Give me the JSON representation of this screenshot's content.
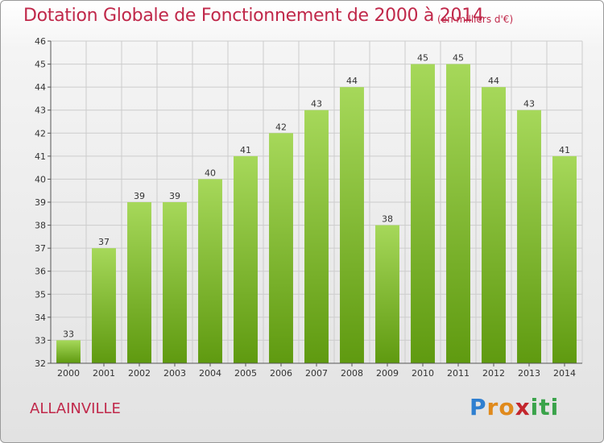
{
  "header": {
    "title": "Dotation Globale de Fonctionnement de 2000 à 2014",
    "units": "(en milliers d'€)"
  },
  "footer": {
    "commune": "ALLAINVILLE",
    "logo_letters": [
      "P",
      "r",
      "o",
      "x",
      "i",
      "t",
      "i"
    ],
    "logo_colors": [
      "#2f7fd0",
      "#e08a1c",
      "#e08a1c",
      "#c3262d",
      "#3aa34a",
      "#3aa34a",
      "#3aa34a"
    ]
  },
  "colors": {
    "title": "#c0284a",
    "bar_top": "#a6d85a",
    "bar_bottom": "#5f9a10",
    "grid": "#cccccc",
    "axis": "#555555"
  },
  "chart_data": {
    "type": "bar",
    "categories": [
      "2000",
      "2001",
      "2002",
      "2003",
      "2004",
      "2005",
      "2006",
      "2007",
      "2008",
      "2009",
      "2010",
      "2011",
      "2012",
      "2013",
      "2014"
    ],
    "values": [
      33,
      37,
      39,
      39,
      40,
      41,
      42,
      43,
      44,
      38,
      45,
      45,
      44,
      43,
      41
    ],
    "ylim": [
      32,
      46
    ],
    "yticks": [
      32,
      33,
      34,
      35,
      36,
      37,
      38,
      39,
      40,
      41,
      42,
      43,
      44,
      45,
      46
    ],
    "grid": true,
    "data_labels": true
  }
}
